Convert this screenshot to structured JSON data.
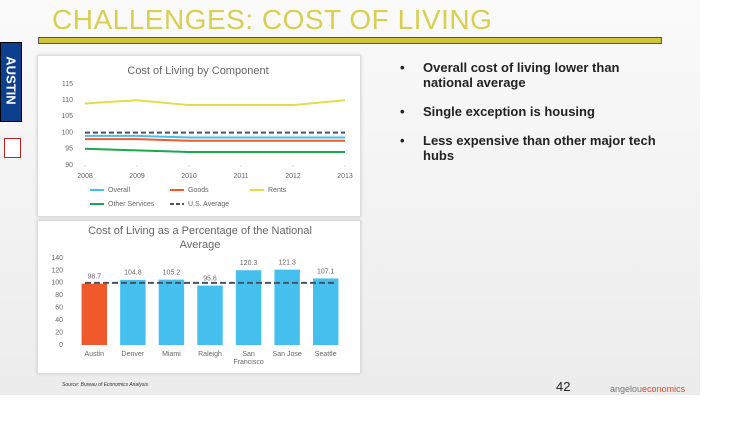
{
  "header": {
    "title": "CHALLENGES: COST OF LIVING"
  },
  "sidebar_label": "AUSTIN",
  "chart_data": [
    {
      "type": "line",
      "title": "Cost of Living by Component",
      "x": [
        2008,
        2009,
        2010,
        2011,
        2012,
        2013
      ],
      "xlim": [
        2008,
        2013
      ],
      "xticks": [
        2008,
        2009,
        2010,
        2011,
        2012,
        2013
      ],
      "ylim": [
        90,
        115
      ],
      "yticks": [
        90,
        95,
        100,
        105,
        110,
        115
      ],
      "series": [
        {
          "name": "Overall",
          "color": "#45c0ee",
          "values": [
            99,
            99,
            98.5,
            98.5,
            98.5,
            98.5
          ]
        },
        {
          "name": "Goods",
          "color": "#f0592b",
          "values": [
            98,
            98,
            97.5,
            97.5,
            97.5,
            97.5
          ]
        },
        {
          "name": "Rents",
          "color": "#e3dc4a",
          "values": [
            109,
            110,
            108.5,
            108.5,
            108.5,
            110
          ]
        },
        {
          "name": "Other Services",
          "color": "#1aa74e",
          "values": [
            95,
            94.5,
            94,
            94,
            94,
            94
          ]
        },
        {
          "name": "U.S. Average",
          "color": "#4a5361",
          "dashed": true,
          "values": [
            100,
            100,
            100,
            100,
            100,
            100
          ]
        }
      ]
    },
    {
      "type": "bar",
      "title": "Cost of Living as a Percentage of the National Average",
      "categories": [
        "Austin",
        "Denver",
        "Miami",
        "Raleigh",
        "San Francisco",
        "San Jose",
        "Seattle"
      ],
      "values": [
        98.7,
        104.8,
        105.2,
        95.6,
        120.3,
        121.3,
        107.1
      ],
      "colors": [
        "#f0592b",
        "#45c0ee",
        "#45c0ee",
        "#45c0ee",
        "#45c0ee",
        "#45c0ee",
        "#45c0ee"
      ],
      "reference_line": 100,
      "ylim": [
        0,
        140
      ],
      "yticks": [
        0,
        20,
        40,
        60,
        80,
        100,
        120,
        140
      ]
    }
  ],
  "bullets": [
    "Overall cost of living lower than national average",
    "Single exception is housing",
    "Less expensive than other major tech hubs"
  ],
  "source": "Source: Bureau of Economics Analysis",
  "page_number": "42",
  "logo": {
    "part1": "angelou",
    "part2": "economics"
  }
}
